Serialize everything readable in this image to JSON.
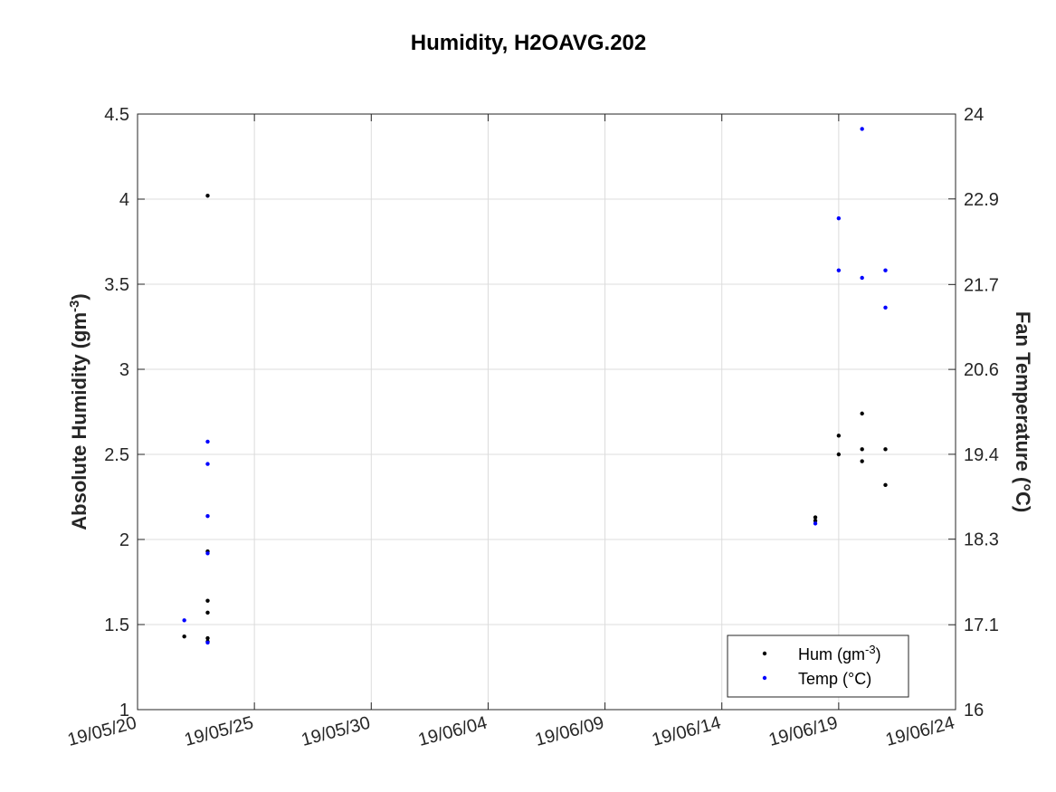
{
  "chart_data": {
    "type": "scatter",
    "title": "Humidity, H2OAVG.202",
    "xlabel": "",
    "ylabel": "Absolute Humidity (gm",
    "ylabel_sup": "-3",
    "ylabel_end": ")",
    "y2label": "Fan Temperature (°C)",
    "x_ticks": [
      "19/05/20",
      "19/05/25",
      "19/05/30",
      "19/06/04",
      "19/06/09",
      "19/06/14",
      "19/06/19",
      "19/06/24"
    ],
    "x_tick_days": [
      0,
      5,
      10,
      15,
      20,
      25,
      30,
      35
    ],
    "xlim_days": [
      0,
      35
    ],
    "ylim": [
      1,
      4.5
    ],
    "y_ticks": [
      "1",
      "1.5",
      "2",
      "2.5",
      "3",
      "3.5",
      "4",
      "4.5"
    ],
    "y_tick_values": [
      1,
      1.5,
      2,
      2.5,
      3,
      3.5,
      4,
      4.5
    ],
    "y2lim": [
      16,
      24
    ],
    "y2_ticks": [
      "16",
      "17.1",
      "18.3",
      "19.4",
      "20.6",
      "21.7",
      "22.9",
      "24"
    ],
    "y2_tick_values": [
      16,
      17.14,
      18.29,
      19.43,
      20.57,
      21.71,
      22.86,
      24
    ],
    "grid": true,
    "legend_position": "bottom-right",
    "series": [
      {
        "name": "Hum (gm",
        "name_sup": "-3",
        "name_end": ")",
        "axis": "left",
        "color": "#000000",
        "points": [
          {
            "x": 2.0,
            "y": 1.43
          },
          {
            "x": 3.0,
            "y": 4.02
          },
          {
            "x": 3.0,
            "y": 1.64
          },
          {
            "x": 3.0,
            "y": 1.57
          },
          {
            "x": 3.0,
            "y": 1.93
          },
          {
            "x": 3.0,
            "y": 1.42
          },
          {
            "x": 3.0,
            "y": 1.4
          },
          {
            "x": 29.0,
            "y": 2.13
          },
          {
            "x": 29.0,
            "y": 2.11
          },
          {
            "x": 30.0,
            "y": 2.61
          },
          {
            "x": 30.0,
            "y": 2.5
          },
          {
            "x": 31.0,
            "y": 2.74
          },
          {
            "x": 31.0,
            "y": 2.53
          },
          {
            "x": 31.0,
            "y": 2.46
          },
          {
            "x": 32.0,
            "y": 2.53
          },
          {
            "x": 32.0,
            "y": 2.32
          }
        ]
      },
      {
        "name": "Temp (°C)",
        "axis": "right",
        "color": "#0000ff",
        "points": [
          {
            "x": 2.0,
            "y": 17.2
          },
          {
            "x": 3.0,
            "y": 19.6
          },
          {
            "x": 3.0,
            "y": 19.3
          },
          {
            "x": 3.0,
            "y": 18.6
          },
          {
            "x": 3.0,
            "y": 18.1
          },
          {
            "x": 3.0,
            "y": 16.9
          },
          {
            "x": 29.0,
            "y": 18.5
          },
          {
            "x": 30.0,
            "y": 22.6
          },
          {
            "x": 30.0,
            "y": 21.9
          },
          {
            "x": 31.0,
            "y": 23.8
          },
          {
            "x": 31.0,
            "y": 21.8
          },
          {
            "x": 32.0,
            "y": 21.9
          },
          {
            "x": 32.0,
            "y": 21.4
          }
        ]
      }
    ]
  }
}
